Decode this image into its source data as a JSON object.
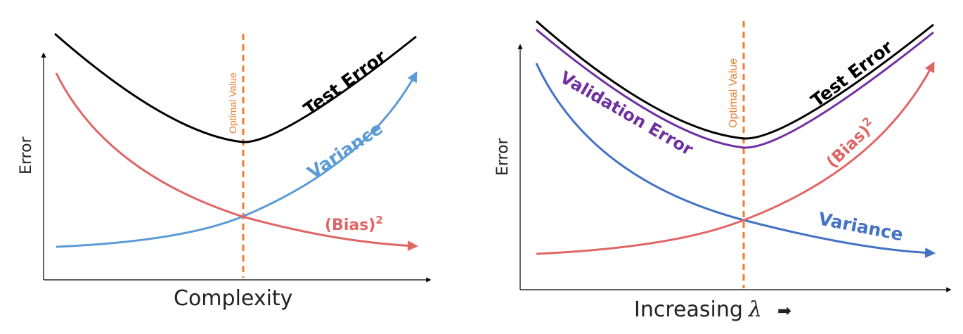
{
  "chart_data": [
    {
      "type": "line",
      "xlabel": "Complexity",
      "ylabel": "Error",
      "optimal_label": "Optimal Value",
      "series": [
        {
          "name": "Test Error",
          "color": "#000000",
          "shape": "U-shaped, minimum at optimal value"
        },
        {
          "name": "Variance",
          "color": "#5b9bd5",
          "shape": "increasing"
        },
        {
          "name": "(Bias)",
          "superscript": "2",
          "color": "#e06666",
          "shape": "decreasing"
        }
      ],
      "optimal_line_color": "#ed7d31",
      "grid": false
    },
    {
      "type": "line",
      "xlabel": "Increasing",
      "xlabel_symbol": "λ",
      "xlabel_arrow": "➡",
      "ylabel": "Error",
      "optimal_label": "Optimal Value",
      "series": [
        {
          "name": "Test Error",
          "color": "#000000",
          "shape": "U-shaped, minimum at optimal value"
        },
        {
          "name": "Validation Error",
          "color": "#7030a0",
          "shape": "U-shaped, minimum at optimal value"
        },
        {
          "name": "(Bias)",
          "superscript": "2",
          "color": "#e06666",
          "shape": "increasing"
        },
        {
          "name": "Variance",
          "color": "#4472c4",
          "shape": "decreasing"
        }
      ],
      "optimal_line_color": "#ed7d31",
      "grid": false
    }
  ]
}
